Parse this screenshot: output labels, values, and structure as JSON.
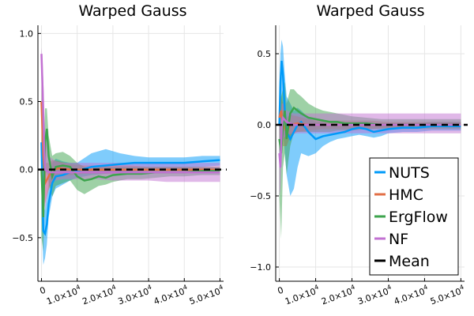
{
  "chart_data": [
    {
      "type": "line",
      "title": "Warped Gauss",
      "xlabel": "",
      "ylabel": "",
      "xlim": [
        -1000,
        51000
      ],
      "ylim": [
        -0.82,
        1.06
      ],
      "x_ticks": [
        0,
        10000,
        20000,
        30000,
        40000,
        50000
      ],
      "x_tick_labels": [
        {
          "mantissa": "0",
          "exp": ""
        },
        {
          "mantissa": "1.0×10",
          "exp": "4"
        },
        {
          "mantissa": "2.0×10",
          "exp": "4"
        },
        {
          "mantissa": "3.0×10",
          "exp": "4"
        },
        {
          "mantissa": "4.0×10",
          "exp": "4"
        },
        {
          "mantissa": "5.0×10",
          "exp": "4"
        }
      ],
      "y_ticks": [
        -0.5,
        0.0,
        0.5,
        1.0
      ],
      "y_tick_labels": [
        "−0.5",
        "0.0",
        "0.5",
        "1.0"
      ],
      "grid": true,
      "legend": false,
      "mean_value": 0.0,
      "series": [
        {
          "name": "NUTS",
          "color": "#009af9",
          "x": [
            0,
            500,
            1000,
            1500,
            2000,
            3000,
            4000,
            6000,
            8000,
            10000,
            14000,
            18000,
            22000,
            26000,
            30000,
            35000,
            40000,
            45000,
            50000
          ],
          "mean": [
            0.2,
            -0.45,
            -0.47,
            -0.4,
            -0.25,
            -0.1,
            -0.05,
            -0.04,
            -0.02,
            -0.01,
            0.02,
            0.03,
            0.04,
            0.05,
            0.05,
            0.05,
            0.05,
            0.06,
            0.07
          ],
          "lower": [
            -0.3,
            -0.7,
            -0.65,
            -0.55,
            -0.35,
            -0.2,
            -0.14,
            -0.11,
            -0.08,
            -0.06,
            -0.04,
            -0.03,
            -0.02,
            -0.01,
            0.0,
            0.0,
            0.01,
            0.02,
            0.03
          ],
          "upper": [
            0.8,
            -0.25,
            -0.3,
            -0.2,
            -0.1,
            0.05,
            0.08,
            0.06,
            0.05,
            0.05,
            0.12,
            0.15,
            0.12,
            0.1,
            0.09,
            0.09,
            0.09,
            0.1,
            0.1
          ]
        },
        {
          "name": "HMC",
          "color": "#e26f46",
          "x": [
            0,
            500,
            1000,
            2000,
            3000,
            5000,
            8000,
            12000,
            16000,
            20000,
            25000,
            30000,
            35000,
            40000,
            45000,
            50000
          ],
          "mean": [
            0.5,
            0.1,
            -0.1,
            -0.05,
            0.0,
            0.01,
            0.0,
            0.0,
            0.0,
            0.0,
            0.0,
            0.0,
            0.0,
            0.0,
            0.0,
            0.0
          ],
          "lower": [
            0.0,
            -0.1,
            -0.25,
            -0.15,
            -0.08,
            -0.05,
            -0.04,
            -0.03,
            -0.03,
            -0.03,
            -0.03,
            -0.02,
            -0.02,
            -0.02,
            -0.02,
            -0.02
          ],
          "upper": [
            0.8,
            0.3,
            0.05,
            0.05,
            0.07,
            0.06,
            0.04,
            0.03,
            0.03,
            0.03,
            0.03,
            0.02,
            0.02,
            0.02,
            0.02,
            0.02
          ]
        },
        {
          "name": "ErgFlow",
          "color": "#3da44d",
          "x": [
            0,
            500,
            1000,
            1500,
            2000,
            3000,
            4000,
            6000,
            8000,
            10000,
            12000,
            14000,
            16000,
            18000,
            20000,
            24000,
            28000,
            32000,
            36000,
            40000,
            45000,
            50000
          ],
          "mean": [
            0.0,
            -0.35,
            0.2,
            0.3,
            0.1,
            -0.05,
            0.02,
            0.03,
            0.02,
            -0.05,
            -0.08,
            -0.07,
            -0.05,
            -0.06,
            -0.04,
            -0.03,
            -0.03,
            -0.02,
            -0.02,
            -0.02,
            -0.01,
            -0.01
          ],
          "lower": [
            -0.5,
            -0.6,
            -0.1,
            0.0,
            -0.1,
            -0.2,
            -0.12,
            -0.1,
            -0.08,
            -0.15,
            -0.18,
            -0.15,
            -0.12,
            -0.11,
            -0.09,
            -0.07,
            -0.07,
            -0.06,
            -0.05,
            -0.05,
            -0.04,
            -0.04
          ],
          "upper": [
            0.5,
            -0.1,
            0.45,
            0.45,
            0.25,
            0.1,
            0.12,
            0.13,
            0.1,
            0.05,
            0.02,
            0.01,
            0.02,
            0.02,
            0.02,
            0.02,
            0.02,
            0.02,
            0.02,
            0.02,
            0.02,
            0.02
          ]
        },
        {
          "name": "NF",
          "color": "#c271d2",
          "x": [
            0,
            300,
            700,
            1000,
            2000,
            4000,
            6000,
            10000,
            15000,
            20000,
            25000,
            30000,
            35000,
            40000,
            45000,
            50000
          ],
          "mean": [
            0.85,
            0.6,
            0.2,
            0.0,
            -0.02,
            -0.02,
            -0.02,
            -0.02,
            -0.02,
            -0.02,
            -0.02,
            -0.02,
            -0.02,
            -0.02,
            -0.02,
            -0.02
          ],
          "lower": [
            0.7,
            0.3,
            -0.2,
            -0.3,
            -0.12,
            -0.08,
            -0.07,
            -0.07,
            -0.07,
            -0.08,
            -0.08,
            -0.08,
            -0.09,
            -0.09,
            -0.09,
            -0.09
          ],
          "upper": [
            0.9,
            0.8,
            0.5,
            0.3,
            0.1,
            0.06,
            0.05,
            0.05,
            0.05,
            0.05,
            0.05,
            0.05,
            0.05,
            0.05,
            0.05,
            0.05
          ]
        }
      ]
    },
    {
      "type": "line",
      "title": "Warped Gauss",
      "xlabel": "",
      "ylabel": "",
      "xlim": [
        -1000,
        51000
      ],
      "ylim": [
        -1.1,
        0.7
      ],
      "x_ticks": [
        0,
        10000,
        20000,
        30000,
        40000,
        50000
      ],
      "x_tick_labels": [
        {
          "mantissa": "0",
          "exp": ""
        },
        {
          "mantissa": "1.0×10",
          "exp": "4"
        },
        {
          "mantissa": "2.0×10",
          "exp": "4"
        },
        {
          "mantissa": "3.0×10",
          "exp": "4"
        },
        {
          "mantissa": "4.0×10",
          "exp": "4"
        },
        {
          "mantissa": "5.0×10",
          "exp": "4"
        }
      ],
      "y_ticks": [
        -1.0,
        -0.5,
        0.0,
        0.5
      ],
      "y_tick_labels": [
        "−1.0",
        "−0.5",
        "0.0",
        "0.5"
      ],
      "grid": true,
      "legend": true,
      "legend_position": "bottom-right",
      "legend_entries": [
        "NUTS",
        "HMC",
        "ErgFlow",
        "NF",
        "Mean"
      ],
      "mean_value": 0.0,
      "series": [
        {
          "name": "NUTS",
          "color": "#009af9",
          "x": [
            0,
            300,
            600,
            1000,
            1500,
            2000,
            3000,
            4000,
            5000,
            6000,
            8000,
            10000,
            12000,
            14000,
            16000,
            18000,
            20000,
            22000,
            24000,
            26000,
            28000,
            30000,
            34000,
            38000,
            42000,
            46000,
            50000
          ],
          "mean": [
            0.0,
            0.3,
            0.45,
            0.35,
            0.1,
            -0.05,
            -0.1,
            -0.05,
            0.0,
            0.02,
            -0.05,
            -0.1,
            -0.08,
            -0.07,
            -0.06,
            -0.05,
            -0.03,
            -0.02,
            -0.03,
            -0.05,
            -0.04,
            -0.03,
            -0.02,
            -0.02,
            -0.01,
            -0.01,
            -0.01
          ],
          "lower": [
            -0.3,
            0.0,
            0.1,
            0.0,
            -0.2,
            -0.35,
            -0.5,
            -0.45,
            -0.3,
            -0.2,
            -0.22,
            -0.2,
            -0.15,
            -0.12,
            -0.1,
            -0.09,
            -0.08,
            -0.07,
            -0.08,
            -0.09,
            -0.08,
            -0.06,
            -0.05,
            -0.05,
            -0.04,
            -0.04,
            -0.04
          ],
          "upper": [
            0.2,
            0.5,
            0.6,
            0.55,
            0.35,
            0.2,
            0.15,
            0.1,
            0.12,
            0.1,
            0.05,
            0.02,
            0.02,
            0.0,
            0.0,
            0.0,
            0.01,
            0.02,
            0.02,
            0.01,
            0.01,
            0.01,
            0.01,
            0.01,
            0.02,
            0.02,
            0.02
          ]
        },
        {
          "name": "HMC",
          "color": "#e26f46",
          "x": [
            0,
            500,
            1000,
            2000,
            3000,
            5000,
            8000,
            12000,
            16000,
            20000,
            25000,
            30000,
            35000,
            40000,
            45000,
            50000
          ],
          "mean": [
            0.05,
            0.1,
            0.0,
            -0.05,
            0.0,
            0.01,
            0.0,
            0.0,
            0.0,
            0.0,
            0.0,
            0.0,
            0.0,
            0.0,
            0.0,
            0.0
          ],
          "lower": [
            -0.2,
            -0.1,
            -0.15,
            -0.15,
            -0.08,
            -0.05,
            -0.04,
            -0.03,
            -0.03,
            -0.03,
            -0.03,
            -0.02,
            -0.02,
            -0.02,
            -0.02,
            -0.02
          ],
          "upper": [
            0.25,
            0.2,
            0.15,
            0.05,
            0.07,
            0.06,
            0.04,
            0.03,
            0.03,
            0.03,
            0.03,
            0.02,
            0.02,
            0.02,
            0.02,
            0.02
          ]
        },
        {
          "name": "ErgFlow",
          "color": "#3da44d",
          "x": [
            0,
            500,
            1000,
            1500,
            2000,
            3000,
            4000,
            5000,
            6000,
            8000,
            10000,
            12000,
            14000,
            16000,
            18000,
            20000,
            24000,
            28000,
            32000,
            36000,
            40000,
            45000,
            50000
          ],
          "mean": [
            -0.1,
            -0.2,
            0.0,
            0.1,
            -0.1,
            0.08,
            0.12,
            0.1,
            0.08,
            0.05,
            0.04,
            0.03,
            0.02,
            0.02,
            0.01,
            0.01,
            0.01,
            0.0,
            0.0,
            0.0,
            0.0,
            0.0,
            0.0
          ],
          "lower": [
            -0.5,
            -0.8,
            -0.3,
            -0.2,
            -0.35,
            -0.15,
            -0.05,
            -0.05,
            -0.05,
            -0.05,
            -0.05,
            -0.05,
            -0.05,
            -0.04,
            -0.04,
            -0.04,
            -0.03,
            -0.03,
            -0.03,
            -0.03,
            -0.03,
            -0.03,
            -0.03
          ],
          "upper": [
            0.2,
            0.2,
            0.25,
            0.3,
            0.15,
            0.25,
            0.25,
            0.22,
            0.2,
            0.15,
            0.12,
            0.1,
            0.09,
            0.08,
            0.07,
            0.06,
            0.05,
            0.04,
            0.04,
            0.04,
            0.04,
            0.04,
            0.04
          ]
        },
        {
          "name": "NF",
          "color": "#c271d2",
          "x": [
            0,
            300,
            700,
            1000,
            2000,
            4000,
            6000,
            10000,
            15000,
            20000,
            25000,
            30000,
            35000,
            40000,
            45000,
            50000
          ],
          "mean": [
            -0.2,
            -0.3,
            0.0,
            0.05,
            0.02,
            0.0,
            0.0,
            0.0,
            0.0,
            0.0,
            0.0,
            0.0,
            0.0,
            0.0,
            0.0,
            0.0
          ],
          "lower": [
            -0.5,
            -0.45,
            -0.15,
            -0.1,
            -0.07,
            -0.06,
            -0.06,
            -0.06,
            -0.06,
            -0.06,
            -0.06,
            -0.06,
            -0.06,
            -0.06,
            -0.06,
            -0.06
          ],
          "upper": [
            0.1,
            0.0,
            0.15,
            0.15,
            0.1,
            0.08,
            0.08,
            0.08,
            0.08,
            0.08,
            0.08,
            0.08,
            0.08,
            0.08,
            0.08,
            0.08
          ]
        }
      ]
    }
  ]
}
